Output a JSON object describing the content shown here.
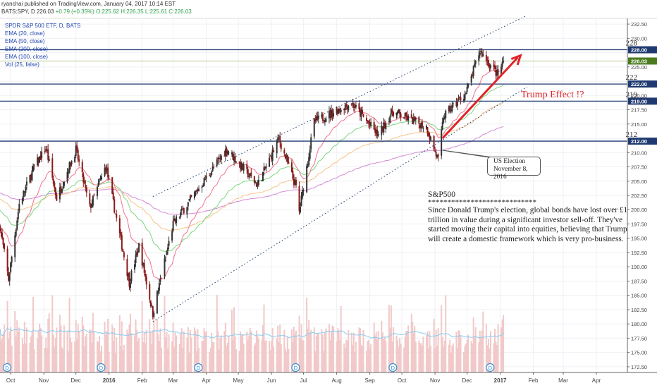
{
  "header": {
    "publisher": "ryanchai published on TradingView.com, January 04, 2017 10:14 EST",
    "symbol": "BATS:SPY, D",
    "last": "226.03",
    "change": "+0.79 (+0.35%)",
    "ohlc": "O:225.62 H:226.35 L:225.61 C:226.03"
  },
  "legend": [
    "SPDR S&P 500 ETF, D, BATS",
    "EMA (20, close)",
    "EMA (50, close)",
    "EMA (200, close)",
    "EMA (100, close)",
    "Vol (25, false)"
  ],
  "annotations": {
    "trump_effect": "Trump Effect !?",
    "election_line1": "US Election",
    "election_line2": "November 8, 2016",
    "note_title": "S&P500",
    "note_stars": "****************************",
    "note_body": "Since Donald Trump's election, global bonds have lost over £1 trillion in value during a significant investor sell-off. They've started moving their capital into equities, believing that Trump will create a domestic framework which is very pro-business."
  },
  "colors": {
    "up": "#333333",
    "down": "#8b1a1a",
    "ema20": "#f0738c",
    "ema50": "#7fd67f",
    "ema100": "#f5c48a",
    "ema200": "#d48ad4",
    "volume": "#f2c9c9",
    "vol_ma": "#87cdf0",
    "level": "#1f3a70",
    "channel": "#1f3a70",
    "arrow": "#e0242a",
    "dividend": "#3a8fd0"
  },
  "chart_data": {
    "type": "candlestick",
    "symbol": "BATS:SPY",
    "interval": "D",
    "x_range": [
      "2015-09-21",
      "2017-04-30"
    ],
    "y_range": [
      171.5,
      233.5
    ],
    "x_ticks": [
      {
        "label": "Oct",
        "date": "2015-10-01"
      },
      {
        "label": "Nov",
        "date": "2015-11-01"
      },
      {
        "label": "Dec",
        "date": "2015-12-01"
      },
      {
        "label": "2016",
        "date": "2016-01-01"
      },
      {
        "label": "Feb",
        "date": "2016-02-01"
      },
      {
        "label": "Mar",
        "date": "2016-03-01"
      },
      {
        "label": "Apr",
        "date": "2016-04-01"
      },
      {
        "label": "May",
        "date": "2016-05-01"
      },
      {
        "label": "Jun",
        "date": "2016-06-01"
      },
      {
        "label": "Jul",
        "date": "2016-07-01"
      },
      {
        "label": "Aug",
        "date": "2016-08-01"
      },
      {
        "label": "Sep",
        "date": "2016-09-01"
      },
      {
        "label": "Oct",
        "date": "2016-10-01"
      },
      {
        "label": "Nov",
        "date": "2016-11-01"
      },
      {
        "label": "Dec",
        "date": "2016-12-01"
      },
      {
        "label": "2017",
        "date": "2017-01-01"
      },
      {
        "label": "Feb",
        "date": "2017-02-01"
      },
      {
        "label": "Mar",
        "date": "2017-03-01"
      },
      {
        "label": "Apr",
        "date": "2017-04-01"
      }
    ],
    "y_ticks": [
      172.5,
      175.0,
      177.5,
      180.0,
      182.5,
      185.0,
      187.5,
      190.0,
      192.5,
      195.0,
      197.5,
      200.0,
      202.5,
      205.0,
      207.5,
      210.0,
      212.5,
      215.0,
      217.5,
      220.0,
      222.5,
      225.0,
      227.5,
      230.0,
      232.5
    ],
    "price_badges": [
      {
        "label": "228.00",
        "value": 228.0
      },
      {
        "label": "226.03",
        "value": 226.03,
        "current": true
      },
      {
        "label": "222.00",
        "value": 222.0
      },
      {
        "label": "219.00",
        "value": 219.0
      },
      {
        "label": "212.00",
        "value": 212.0
      }
    ],
    "levels": [
      {
        "label": "228",
        "value": 228
      },
      {
        "label": "222",
        "value": 222
      },
      {
        "label": "219",
        "value": 219
      },
      {
        "label": "212",
        "value": 212
      }
    ],
    "channel_upper": [
      [
        "2016-02-11",
        202.3
      ],
      [
        "2017-01-26",
        234.0
      ]
    ],
    "channel_lower": [
      [
        "2016-02-11",
        180.4
      ],
      [
        "2017-01-26",
        221.5
      ]
    ],
    "trend_arrow": [
      [
        "2016-11-08",
        212.5
      ],
      [
        "2017-01-20",
        227.0
      ]
    ],
    "election_date": "2016-11-08",
    "dividend_markers": [
      "2015-09-21",
      "2015-12-18",
      "2016-03-18",
      "2016-06-17",
      "2016-09-16",
      "2016-12-16"
    ],
    "price_path": [
      [
        "2015-09-21",
        197
      ],
      [
        "2015-09-29",
        187.8
      ],
      [
        "2015-10-09",
        201
      ],
      [
        "2015-10-23",
        207.5
      ],
      [
        "2015-11-03",
        210.8
      ],
      [
        "2015-11-13",
        202
      ],
      [
        "2015-12-01",
        210.5
      ],
      [
        "2015-12-14",
        200.3
      ],
      [
        "2015-12-29",
        207.6
      ],
      [
        "2016-01-20",
        187.3
      ],
      [
        "2016-01-29",
        193.7
      ],
      [
        "2016-02-11",
        181.8
      ],
      [
        "2016-03-01",
        197.5
      ],
      [
        "2016-03-31",
        205.3
      ],
      [
        "2016-04-20",
        210.6
      ],
      [
        "2016-05-19",
        204.3
      ],
      [
        "2016-06-08",
        212.4
      ],
      [
        "2016-06-24",
        203.9
      ],
      [
        "2016-06-27",
        199.6
      ],
      [
        "2016-07-11",
        215.4
      ],
      [
        "2016-08-15",
        218.7
      ],
      [
        "2016-09-09",
        213.0
      ],
      [
        "2016-09-22",
        217.2
      ],
      [
        "2016-10-24",
        214.5
      ],
      [
        "2016-11-04",
        208.6
      ],
      [
        "2016-11-09",
        216.4
      ],
      [
        "2016-11-30",
        220.4
      ],
      [
        "2016-12-13",
        227.8
      ],
      [
        "2016-12-30",
        223.5
      ],
      [
        "2017-01-04",
        226.03
      ]
    ]
  }
}
